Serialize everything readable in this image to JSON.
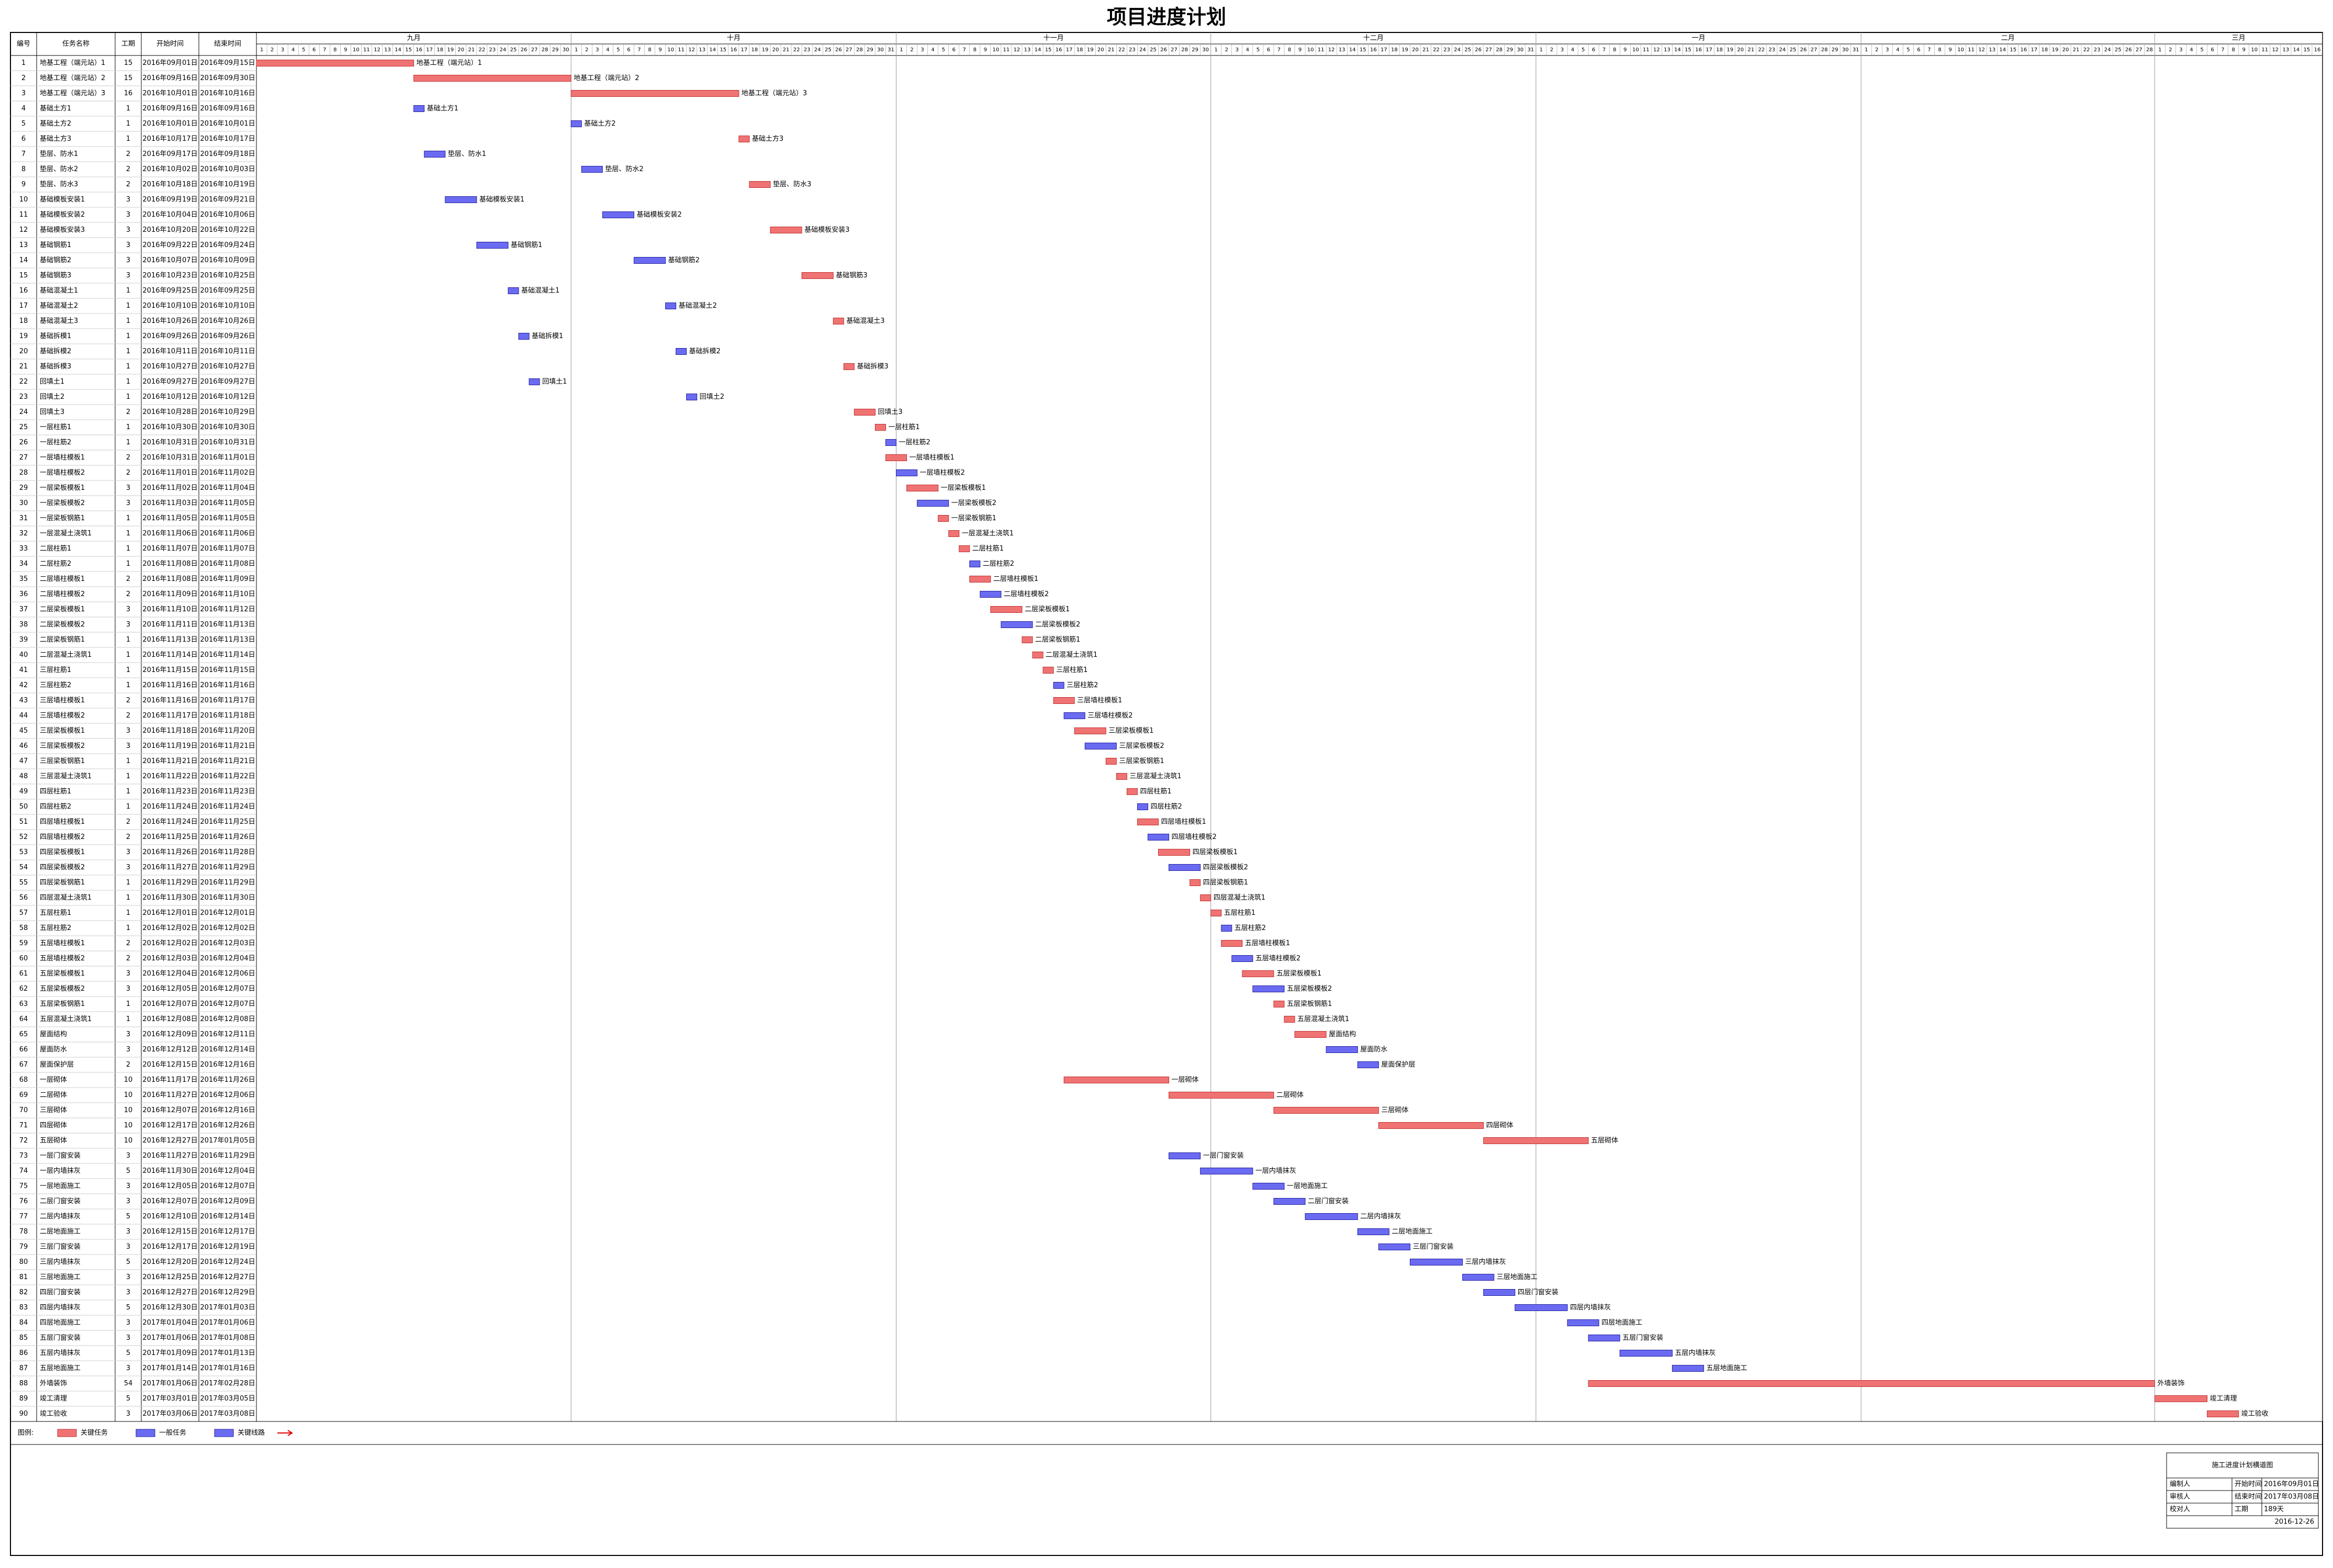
{
  "chart_data": {
    "type": "gantt",
    "title": "项目进度计划",
    "critical_color": "#f07373",
    "normal_color": "#6b6bf2",
    "months": [
      {
        "name": "九月",
        "days": [
          1,
          2,
          3,
          4,
          5,
          6,
          7,
          8,
          9,
          10,
          11,
          12,
          13,
          14,
          15,
          16,
          17,
          18,
          19,
          20,
          21,
          22,
          23,
          24,
          25,
          26,
          27,
          28,
          29,
          30
        ]
      },
      {
        "name": "十月",
        "days": [
          1,
          2,
          3,
          4,
          5,
          6,
          7,
          8,
          9,
          10,
          11,
          12,
          13,
          14,
          15,
          16,
          17,
          18,
          19,
          20,
          21,
          22,
          23,
          24,
          25,
          26,
          27,
          28,
          29,
          30,
          31
        ]
      },
      {
        "name": "十一月",
        "days": [
          1,
          2,
          3,
          4,
          5,
          6,
          7,
          8,
          9,
          10,
          11,
          12,
          13,
          14,
          15,
          16,
          17,
          18,
          19,
          20,
          21,
          22,
          23,
          24,
          25,
          26,
          27,
          28,
          29,
          30
        ]
      },
      {
        "name": "十二月",
        "days": [
          1,
          2,
          3,
          4,
          5,
          6,
          7,
          8,
          9,
          10,
          11,
          12,
          13,
          14,
          15,
          16,
          17,
          18,
          19,
          20,
          21,
          22,
          23,
          24,
          25,
          26,
          27,
          28,
          29,
          30,
          31
        ]
      },
      {
        "name": "一月",
        "days": [
          1,
          2,
          3,
          4,
          5,
          6,
          7,
          8,
          9,
          10,
          11,
          12,
          13,
          14,
          15,
          16,
          17,
          18,
          19,
          20,
          21,
          22,
          23,
          24,
          25,
          26,
          27,
          28,
          29,
          30,
          31
        ]
      },
      {
        "name": "二月",
        "days": [
          1,
          2,
          3,
          4,
          5,
          6,
          7,
          8,
          9,
          10,
          11,
          12,
          13,
          14,
          15,
          16,
          17,
          18,
          19,
          20,
          21,
          22,
          23,
          24,
          25,
          26,
          27,
          28
        ]
      },
      {
        "name": "三月",
        "days": [
          1,
          2,
          3,
          4,
          5,
          6,
          7,
          8,
          9,
          10,
          11,
          12,
          13,
          14,
          15,
          16
        ]
      }
    ],
    "columns": [
      "编号",
      "任务名称",
      "工期",
      "开始时间",
      "结束时间"
    ],
    "rows": [
      [
        1,
        "地基工程（端元站）1",
        15,
        "2016年09月01日",
        "2016年09月15日"
      ],
      [
        2,
        "地基工程（端元站）2",
        15,
        "2016年09月16日",
        "2016年09月30日"
      ],
      [
        3,
        "地基工程（端元站）3",
        16,
        "2016年10月01日",
        "2016年10月16日"
      ],
      [
        4,
        "基础土方1",
        1,
        "2016年09月16日",
        "2016年09月16日"
      ],
      [
        5,
        "基础土方2",
        1,
        "2016年10月01日",
        "2016年10月01日"
      ],
      [
        6,
        "基础土方3",
        1,
        "2016年10月17日",
        "2016年10月17日"
      ],
      [
        7,
        "垫层、防水1",
        2,
        "2016年09月17日",
        "2016年09月18日"
      ],
      [
        8,
        "垫层、防水2",
        2,
        "2016年10月02日",
        "2016年10月03日"
      ],
      [
        9,
        "垫层、防水3",
        2,
        "2016年10月18日",
        "2016年10月19日"
      ],
      [
        10,
        "基础模板安装1",
        3,
        "2016年09月19日",
        "2016年09月21日"
      ],
      [
        11,
        "基础模板安装2",
        3,
        "2016年10月04日",
        "2016年10月06日"
      ],
      [
        12,
        "基础模板安装3",
        3,
        "2016年10月20日",
        "2016年10月22日"
      ],
      [
        13,
        "基础钢筋1",
        3,
        "2016年09月22日",
        "2016年09月24日"
      ],
      [
        14,
        "基础钢筋2",
        3,
        "2016年10月07日",
        "2016年10月09日"
      ],
      [
        15,
        "基础钢筋3",
        3,
        "2016年10月23日",
        "2016年10月25日"
      ],
      [
        16,
        "基础混凝土1",
        1,
        "2016年09月25日",
        "2016年09月25日"
      ],
      [
        17,
        "基础混凝土2",
        1,
        "2016年10月10日",
        "2016年10月10日"
      ],
      [
        18,
        "基础混凝土3",
        1,
        "2016年10月26日",
        "2016年10月26日"
      ],
      [
        19,
        "基础拆模1",
        1,
        "2016年09月26日",
        "2016年09月26日"
      ],
      [
        20,
        "基础拆模2",
        1,
        "2016年10月11日",
        "2016年10月11日"
      ],
      [
        21,
        "基础拆模3",
        1,
        "2016年10月27日",
        "2016年10月27日"
      ],
      [
        22,
        "回填土1",
        1,
        "2016年09月27日",
        "2016年09月27日"
      ],
      [
        23,
        "回填土2",
        1,
        "2016年10月12日",
        "2016年10月12日"
      ],
      [
        24,
        "回填土3",
        2,
        "2016年10月28日",
        "2016年10月29日"
      ],
      [
        25,
        "一层柱筋1",
        1,
        "2016年10月30日",
        "2016年10月30日"
      ],
      [
        26,
        "一层柱筋2",
        1,
        "2016年10月31日",
        "2016年10月31日"
      ],
      [
        27,
        "一层墙柱模板1",
        2,
        "2016年10月31日",
        "2016年11月01日"
      ],
      [
        28,
        "一层墙柱模板2",
        2,
        "2016年11月01日",
        "2016年11月02日"
      ],
      [
        29,
        "一层梁板模板1",
        3,
        "2016年11月02日",
        "2016年11月04日"
      ],
      [
        30,
        "一层梁板模板2",
        3,
        "2016年11月03日",
        "2016年11月05日"
      ],
      [
        31,
        "一层梁板钢筋1",
        1,
        "2016年11月05日",
        "2016年11月05日"
      ],
      [
        32,
        "一层混凝土浇筑1",
        1,
        "2016年11月06日",
        "2016年11月06日"
      ],
      [
        33,
        "二层柱筋1",
        1,
        "2016年11月07日",
        "2016年11月07日"
      ],
      [
        34,
        "二层柱筋2",
        1,
        "2016年11月08日",
        "2016年11月08日"
      ],
      [
        35,
        "二层墙柱模板1",
        2,
        "2016年11月08日",
        "2016年11月09日"
      ],
      [
        36,
        "二层墙柱模板2",
        2,
        "2016年11月09日",
        "2016年11月10日"
      ],
      [
        37,
        "二层梁板模板1",
        3,
        "2016年11月10日",
        "2016年11月12日"
      ],
      [
        38,
        "二层梁板模板2",
        3,
        "2016年11月11日",
        "2016年11月13日"
      ],
      [
        39,
        "二层梁板钢筋1",
        1,
        "2016年11月13日",
        "2016年11月13日"
      ],
      [
        40,
        "二层混凝土浇筑1",
        1,
        "2016年11月14日",
        "2016年11月14日"
      ],
      [
        41,
        "三层柱筋1",
        1,
        "2016年11月15日",
        "2016年11月15日"
      ],
      [
        42,
        "三层柱筋2",
        1,
        "2016年11月16日",
        "2016年11月16日"
      ],
      [
        43,
        "三层墙柱模板1",
        2,
        "2016年11月16日",
        "2016年11月17日"
      ],
      [
        44,
        "三层墙柱模板2",
        2,
        "2016年11月17日",
        "2016年11月18日"
      ],
      [
        45,
        "三层梁板模板1",
        3,
        "2016年11月18日",
        "2016年11月20日"
      ],
      [
        46,
        "三层梁板模板2",
        3,
        "2016年11月19日",
        "2016年11月21日"
      ],
      [
        47,
        "三层梁板钢筋1",
        1,
        "2016年11月21日",
        "2016年11月21日"
      ],
      [
        48,
        "三层混凝土浇筑1",
        1,
        "2016年11月22日",
        "2016年11月22日"
      ],
      [
        49,
        "四层柱筋1",
        1,
        "2016年11月23日",
        "2016年11月23日"
      ],
      [
        50,
        "四层柱筋2",
        1,
        "2016年11月24日",
        "2016年11月24日"
      ],
      [
        51,
        "四层墙柱模板1",
        2,
        "2016年11月24日",
        "2016年11月25日"
      ],
      [
        52,
        "四层墙柱模板2",
        2,
        "2016年11月25日",
        "2016年11月26日"
      ],
      [
        53,
        "四层梁板模板1",
        3,
        "2016年11月26日",
        "2016年11月28日"
      ],
      [
        54,
        "四层梁板模板2",
        3,
        "2016年11月27日",
        "2016年11月29日"
      ],
      [
        55,
        "四层梁板钢筋1",
        1,
        "2016年11月29日",
        "2016年11月29日"
      ],
      [
        56,
        "四层混凝土浇筑1",
        1,
        "2016年11月30日",
        "2016年11月30日"
      ],
      [
        57,
        "五层柱筋1",
        1,
        "2016年12月01日",
        "2016年12月01日"
      ],
      [
        58,
        "五层柱筋2",
        1,
        "2016年12月02日",
        "2016年12月02日"
      ],
      [
        59,
        "五层墙柱模板1",
        2,
        "2016年12月02日",
        "2016年12月03日"
      ],
      [
        60,
        "五层墙柱模板2",
        2,
        "2016年12月03日",
        "2016年12月04日"
      ],
      [
        61,
        "五层梁板模板1",
        3,
        "2016年12月04日",
        "2016年12月06日"
      ],
      [
        62,
        "五层梁板模板2",
        3,
        "2016年12月05日",
        "2016年12月07日"
      ],
      [
        63,
        "五层梁板钢筋1",
        1,
        "2016年12月07日",
        "2016年12月07日"
      ],
      [
        64,
        "五层混凝土浇筑1",
        1,
        "2016年12月08日",
        "2016年12月08日"
      ],
      [
        65,
        "屋面结构",
        3,
        "2016年12月09日",
        "2016年12月11日"
      ],
      [
        66,
        "屋面防水",
        3,
        "2016年12月12日",
        "2016年12月14日"
      ],
      [
        67,
        "屋面保护层",
        2,
        "2016年12月15日",
        "2016年12月16日"
      ],
      [
        68,
        "一层砌体",
        10,
        "2016年11月17日",
        "2016年11月26日"
      ],
      [
        69,
        "二层砌体",
        10,
        "2016年11月27日",
        "2016年12月06日"
      ],
      [
        70,
        "三层砌体",
        10,
        "2016年12月07日",
        "2016年12月16日"
      ],
      [
        71,
        "四层砌体",
        10,
        "2016年12月17日",
        "2016年12月26日"
      ],
      [
        72,
        "五层砌体",
        10,
        "2016年12月27日",
        "2017年01月05日"
      ],
      [
        73,
        "一层门窗安装",
        3,
        "2016年11月27日",
        "2016年11月29日"
      ],
      [
        74,
        "一层内墙抹灰",
        5,
        "2016年11月30日",
        "2016年12月04日"
      ],
      [
        75,
        "一层地面施工",
        3,
        "2016年12月05日",
        "2016年12月07日"
      ],
      [
        76,
        "二层门窗安装",
        3,
        "2016年12月07日",
        "2016年12月09日"
      ],
      [
        77,
        "二层内墙抹灰",
        5,
        "2016年12月10日",
        "2016年12月14日"
      ],
      [
        78,
        "二层地面施工",
        3,
        "2016年12月15日",
        "2016年12月17日"
      ],
      [
        79,
        "三层门窗安装",
        3,
        "2016年12月17日",
        "2016年12月19日"
      ],
      [
        80,
        "三层内墙抹灰",
        5,
        "2016年12月20日",
        "2016年12月24日"
      ],
      [
        81,
        "三层地面施工",
        3,
        "2016年12月25日",
        "2016年12月27日"
      ],
      [
        82,
        "四层门窗安装",
        3,
        "2016年12月27日",
        "2016年12月29日"
      ],
      [
        83,
        "四层内墙抹灰",
        5,
        "2016年12月30日",
        "2017年01月03日"
      ],
      [
        84,
        "四层地面施工",
        3,
        "2017年01月04日",
        "2017年01月06日"
      ],
      [
        85,
        "五层门窗安装",
        3,
        "2017年01月06日",
        "2017年01月08日"
      ],
      [
        86,
        "五层内墙抹灰",
        5,
        "2017年01月09日",
        "2017年01月13日"
      ],
      [
        87,
        "五层地面施工",
        3,
        "2017年01月14日",
        "2017年01月16日"
      ],
      [
        88,
        "外墙装饰",
        54,
        "2017年01月06日",
        "2017年02月28日"
      ],
      [
        89,
        "竣工清理",
        5,
        "2017年03月01日",
        "2017年03月05日"
      ],
      [
        90,
        "竣工验收",
        3,
        "2017年03月06日",
        "2017年03月08日"
      ]
    ],
    "critical": [
      true,
      true,
      true,
      false,
      false,
      true,
      false,
      false,
      true,
      false,
      false,
      true,
      false,
      false,
      true,
      false,
      false,
      true,
      false,
      false,
      true,
      false,
      false,
      true,
      true,
      false,
      true,
      false,
      true,
      false,
      true,
      true,
      true,
      false,
      true,
      false,
      true,
      false,
      true,
      true,
      true,
      false,
      true,
      false,
      true,
      false,
      true,
      true,
      true,
      false,
      true,
      false,
      true,
      false,
      true,
      true,
      true,
      false,
      true,
      false,
      true,
      false,
      true,
      true,
      true,
      false,
      false,
      true,
      true,
      true,
      true,
      true,
      false,
      false,
      false,
      false,
      false,
      false,
      false,
      false,
      false,
      false,
      false,
      false,
      false,
      false,
      false,
      true,
      true,
      true
    ],
    "legend_title": "图例:",
    "legend": [
      "关键任务",
      "一般任务",
      "关键线路"
    ],
    "drawing_title": "施工进度计划横道图",
    "signers": [
      "编制人",
      "审核人",
      "校对人"
    ],
    "info": [
      [
        "开始时间",
        "2016年09月01日"
      ],
      [
        "结束时间",
        "2017年03月08日"
      ],
      [
        "工期",
        "189天"
      ]
    ],
    "date": "2016-12-26"
  }
}
